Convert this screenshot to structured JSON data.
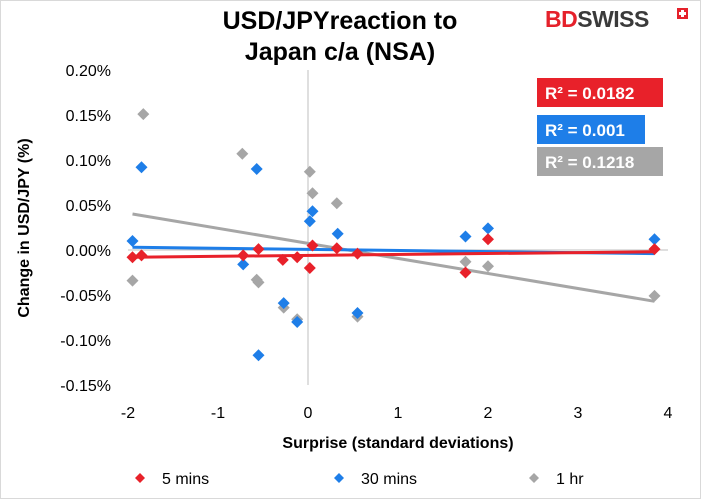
{
  "chart": {
    "title_line1": "USD/JPYreaction to",
    "title_line2": "Japan c/a (NSA)",
    "brand_part1": "BD",
    "brand_part2": "SWISS"
  },
  "chart_data": {
    "type": "scatter",
    "title": "USD/JPYreaction to Japan c/a (NSA)",
    "xlabel": "Surprise (standard deviations)",
    "ylabel": "Change in USD/JPY  (%)",
    "xlim": [
      -2,
      4
    ],
    "ylim": [
      -0.15,
      0.2
    ],
    "x_ticks": [
      -2,
      -1,
      0,
      1,
      2,
      3,
      4
    ],
    "x_tick_labels": [
      "-2",
      "-1",
      "0",
      "1",
      "2",
      "3",
      "4"
    ],
    "y_ticks": [
      0.2,
      0.15,
      0.1,
      0.05,
      0.0,
      -0.05,
      -0.1,
      -0.15
    ],
    "y_tick_labels": [
      "0.20%",
      "0.15%",
      "0.10%",
      "0.05%",
      "0.00%",
      "-0.05%",
      "-0.10%",
      "-0.15%"
    ],
    "grid": false,
    "legend_position": "bottom",
    "series": [
      {
        "name": "5 mins",
        "color": "#e8212a",
        "points": [
          [
            -1.95,
            -0.008
          ],
          [
            -1.85,
            -0.006
          ],
          [
            -0.72,
            -0.006
          ],
          [
            -0.55,
            0.001
          ],
          [
            -0.28,
            -0.011
          ],
          [
            -0.12,
            -0.008
          ],
          [
            0.02,
            -0.02
          ],
          [
            0.05,
            0.005
          ],
          [
            0.32,
            0.002
          ],
          [
            0.55,
            -0.004
          ],
          [
            1.75,
            -0.025
          ],
          [
            2.0,
            0.012
          ],
          [
            3.85,
            0.001
          ]
        ],
        "r2_label": "R² = 0.0182",
        "trend": [
          [
            -1.95,
            -0.008
          ],
          [
            3.85,
            -0.002
          ]
        ]
      },
      {
        "name": "30 mins",
        "color": "#1e7ee8",
        "points": [
          [
            -1.95,
            0.01
          ],
          [
            -1.85,
            0.092
          ],
          [
            -0.72,
            -0.016
          ],
          [
            -0.57,
            0.09
          ],
          [
            -0.55,
            -0.117
          ],
          [
            -0.27,
            -0.059
          ],
          [
            -0.12,
            -0.08
          ],
          [
            0.02,
            0.032
          ],
          [
            0.05,
            0.043
          ],
          [
            0.33,
            0.018
          ],
          [
            0.55,
            -0.07
          ],
          [
            1.75,
            0.015
          ],
          [
            2.0,
            0.024
          ],
          [
            3.85,
            0.012
          ]
        ],
        "r2_label": "R² = 0.001",
        "trend": [
          [
            -1.95,
            0.003
          ],
          [
            3.85,
            -0.004
          ]
        ]
      },
      {
        "name": "1 hr",
        "color": "#a6a6a6",
        "points": [
          [
            -1.95,
            -0.034
          ],
          [
            -1.83,
            0.151
          ],
          [
            -0.73,
            0.107
          ],
          [
            -0.57,
            -0.033
          ],
          [
            -0.55,
            -0.036
          ],
          [
            -0.27,
            -0.064
          ],
          [
            -0.12,
            -0.077
          ],
          [
            0.02,
            0.087
          ],
          [
            0.05,
            0.063
          ],
          [
            0.32,
            0.052
          ],
          [
            0.55,
            -0.074
          ],
          [
            1.75,
            -0.013
          ],
          [
            2.0,
            -0.018
          ],
          [
            3.85,
            -0.051
          ]
        ],
        "r2_label": "R² = 0.1218",
        "trend": [
          [
            -1.95,
            0.04
          ],
          [
            3.85,
            -0.057
          ]
        ]
      }
    ]
  }
}
